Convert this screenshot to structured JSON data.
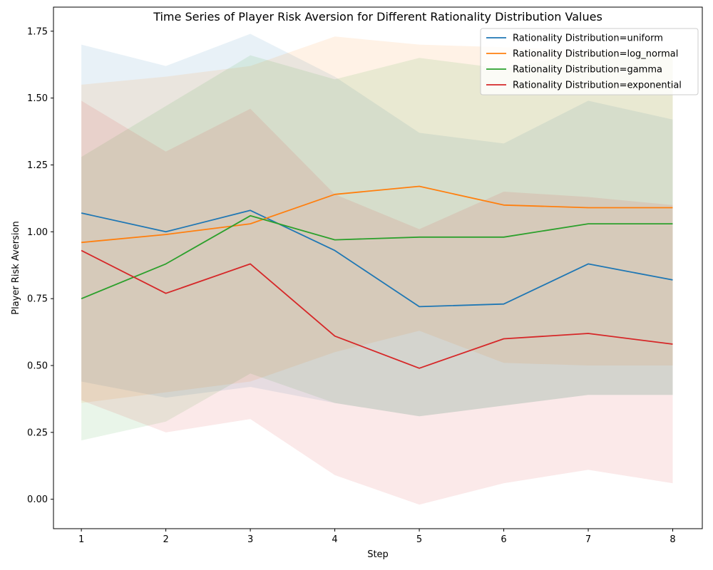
{
  "chart_data": {
    "type": "line",
    "title": "Time Series of Player Risk Aversion for Different Rationality Distribution Values",
    "xlabel": "Step",
    "ylabel": "Player Risk Aversion",
    "x": [
      1,
      2,
      3,
      4,
      5,
      6,
      7,
      8
    ],
    "xlim": [
      0.67,
      8.35
    ],
    "ylim": [
      -0.11,
      1.84
    ],
    "xticks": [
      1,
      2,
      3,
      4,
      5,
      6,
      7,
      8
    ],
    "yticks": [
      0.0,
      0.25,
      0.5,
      0.75,
      1.0,
      1.25,
      1.5,
      1.75
    ],
    "ytick_labels": [
      "0.00",
      "0.25",
      "0.50",
      "0.75",
      "1.00",
      "1.25",
      "1.50",
      "1.75"
    ],
    "grid": false,
    "legend_position": "top-right",
    "series": [
      {
        "name": "Rationality Distribution=uniform",
        "color": "#1f77b4",
        "values": [
          1.07,
          1.0,
          1.08,
          0.93,
          0.72,
          0.73,
          0.88,
          0.82
        ],
        "lower": [
          0.44,
          0.38,
          0.42,
          0.36,
          0.31,
          0.35,
          0.39,
          0.39
        ],
        "upper": [
          1.7,
          1.62,
          1.74,
          1.58,
          1.37,
          1.33,
          1.49,
          1.42
        ]
      },
      {
        "name": "Rationality Distribution=log_normal",
        "color": "#ff7f0e",
        "values": [
          0.96,
          0.99,
          1.03,
          1.14,
          1.17,
          1.1,
          1.09,
          1.09
        ],
        "lower": [
          0.36,
          0.4,
          0.44,
          0.55,
          0.63,
          0.51,
          0.5,
          0.5
        ],
        "upper": [
          1.55,
          1.58,
          1.62,
          1.73,
          1.7,
          1.69,
          1.68,
          1.68
        ]
      },
      {
        "name": "Rationality Distribution=gamma",
        "color": "#2ca02c",
        "values": [
          0.75,
          0.88,
          1.06,
          0.97,
          0.98,
          0.98,
          1.03,
          1.03
        ],
        "lower": [
          0.22,
          0.29,
          0.47,
          0.36,
          0.31,
          0.35,
          0.39,
          0.39
        ],
        "upper": [
          1.28,
          1.47,
          1.66,
          1.57,
          1.65,
          1.61,
          1.67,
          1.67
        ]
      },
      {
        "name": "Rationality Distribution=exponential",
        "color": "#d62728",
        "values": [
          0.93,
          0.77,
          0.88,
          0.61,
          0.49,
          0.6,
          0.62,
          0.58
        ],
        "lower": [
          0.37,
          0.25,
          0.3,
          0.09,
          -0.02,
          0.06,
          0.11,
          0.06
        ],
        "upper": [
          1.49,
          1.3,
          1.46,
          1.14,
          1.01,
          1.15,
          1.13,
          1.1
        ]
      }
    ]
  }
}
